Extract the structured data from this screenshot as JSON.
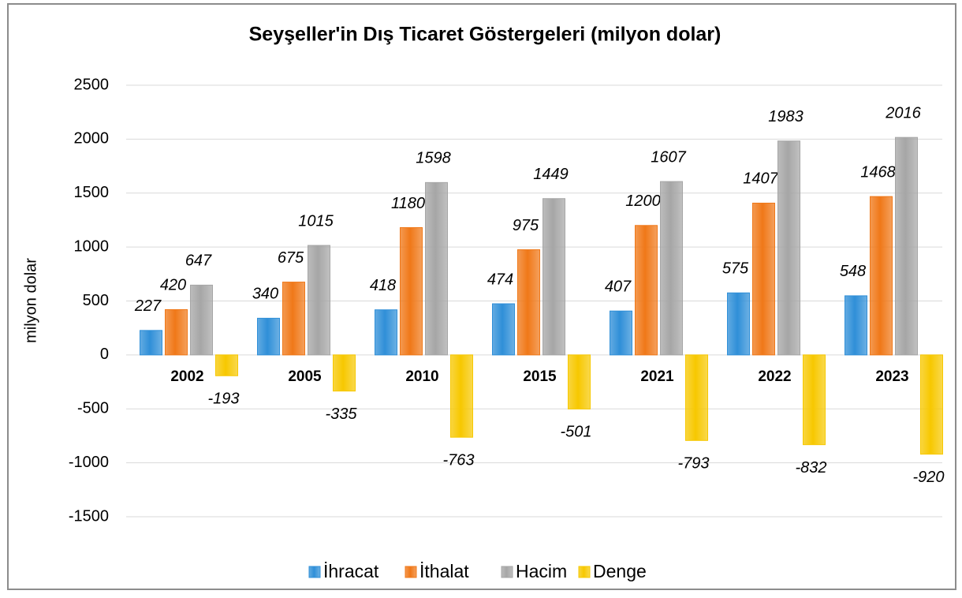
{
  "chart_data": {
    "type": "bar",
    "title": "Seyşeller'in Dış Ticaret Göstergeleri  (milyon dolar)",
    "y_label": "milyon dolar",
    "categories": [
      "2002",
      "2005",
      "2010",
      "2015",
      "2021",
      "2022",
      "2023"
    ],
    "series": [
      {
        "name": "İhracat",
        "color": "#2f8fd8",
        "values": [
          227,
          340,
          418,
          474,
          407,
          575,
          548
        ]
      },
      {
        "name": "İthalat",
        "color": "#f07818",
        "values": [
          420,
          675,
          1180,
          975,
          1200,
          1407,
          1468
        ]
      },
      {
        "name": "Hacim",
        "color": "#a6a6a6",
        "values": [
          647,
          1015,
          1598,
          1449,
          1607,
          1983,
          2016
        ]
      },
      {
        "name": "Denge",
        "color": "#f7c800",
        "values": [
          -193,
          -335,
          -763,
          -501,
          -793,
          -832,
          -920
        ]
      }
    ],
    "ylim": [
      -1500,
      2500
    ],
    "yticks": [
      -1500,
      -1000,
      -500,
      0,
      500,
      1000,
      1500,
      2000,
      2500
    ],
    "grid": true,
    "legend": "bottom"
  }
}
